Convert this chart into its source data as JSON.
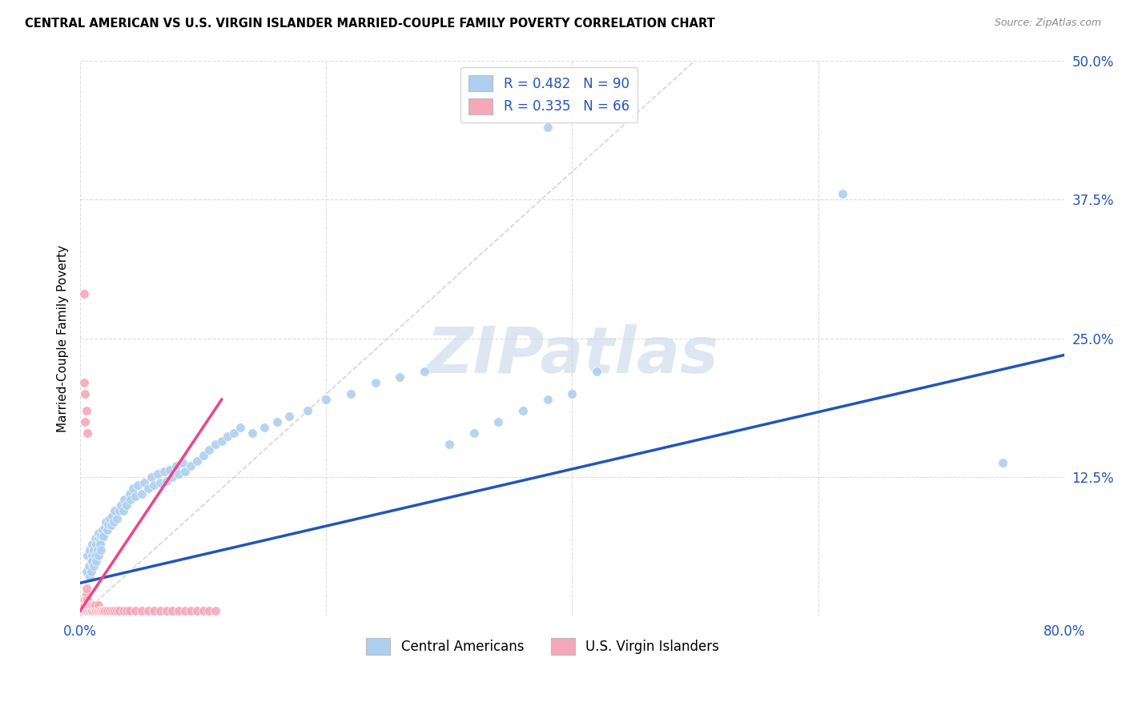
{
  "title": "CENTRAL AMERICAN VS U.S. VIRGIN ISLANDER MARRIED-COUPLE FAMILY POVERTY CORRELATION CHART",
  "source": "Source: ZipAtlas.com",
  "ylabel": "Married-Couple Family Poverty",
  "xlim": [
    0.0,
    0.8
  ],
  "ylim": [
    0.0,
    0.5
  ],
  "blue_R": 0.482,
  "blue_N": 90,
  "pink_R": 0.335,
  "pink_N": 66,
  "blue_color": "#aecff0",
  "blue_line_color": "#2255bb",
  "pink_color": "#f5a8b8",
  "pink_line_color": "#ee4488",
  "diagonal_color": "#cccccc",
  "grid_color": "#dddddd",
  "watermark_color": "#c8d8e8",
  "legend_color": "#2255bb",
  "blue_line_x0": 0.0,
  "blue_line_y0": 0.03,
  "blue_line_x1": 0.8,
  "blue_line_y1": 0.235,
  "pink_line_x0": 0.0,
  "pink_line_y0": 0.005,
  "pink_line_x1": 0.115,
  "pink_line_y1": 0.195,
  "blue_x": [
    0.005,
    0.006,
    0.007,
    0.008,
    0.009,
    0.01,
    0.01,
    0.011,
    0.012,
    0.013,
    0.015,
    0.015,
    0.016,
    0.017,
    0.018,
    0.019,
    0.02,
    0.021,
    0.022,
    0.023,
    0.024,
    0.025,
    0.026,
    0.027,
    0.028,
    0.03,
    0.032,
    0.033,
    0.035,
    0.036,
    0.038,
    0.04,
    0.041,
    0.043,
    0.045,
    0.047,
    0.05,
    0.052,
    0.055,
    0.058,
    0.06,
    0.063,
    0.065,
    0.068,
    0.07,
    0.073,
    0.075,
    0.078,
    0.08,
    0.083,
    0.085,
    0.09,
    0.095,
    0.1,
    0.105,
    0.11,
    0.115,
    0.12,
    0.125,
    0.13,
    0.14,
    0.15,
    0.16,
    0.17,
    0.185,
    0.2,
    0.22,
    0.24,
    0.26,
    0.28,
    0.3,
    0.32,
    0.34,
    0.36,
    0.38,
    0.4,
    0.42,
    0.38,
    0.62,
    0.75,
    0.008,
    0.009,
    0.01,
    0.011,
    0.012,
    0.013,
    0.014,
    0.015,
    0.016,
    0.017
  ],
  "blue_y": [
    0.04,
    0.055,
    0.045,
    0.06,
    0.05,
    0.065,
    0.055,
    0.06,
    0.07,
    0.065,
    0.07,
    0.075,
    0.068,
    0.073,
    0.078,
    0.072,
    0.08,
    0.085,
    0.078,
    0.083,
    0.088,
    0.082,
    0.09,
    0.085,
    0.095,
    0.088,
    0.095,
    0.1,
    0.095,
    0.105,
    0.1,
    0.11,
    0.105,
    0.115,
    0.108,
    0.118,
    0.11,
    0.12,
    0.115,
    0.125,
    0.118,
    0.128,
    0.12,
    0.13,
    0.122,
    0.132,
    0.125,
    0.135,
    0.128,
    0.138,
    0.13,
    0.135,
    0.14,
    0.145,
    0.15,
    0.155,
    0.158,
    0.162,
    0.165,
    0.17,
    0.165,
    0.17,
    0.175,
    0.18,
    0.185,
    0.195,
    0.2,
    0.21,
    0.215,
    0.22,
    0.155,
    0.165,
    0.175,
    0.185,
    0.195,
    0.2,
    0.22,
    0.44,
    0.38,
    0.138,
    0.035,
    0.04,
    0.05,
    0.045,
    0.055,
    0.05,
    0.06,
    0.055,
    0.065,
    0.06
  ],
  "pink_x": [
    0.002,
    0.002,
    0.003,
    0.003,
    0.003,
    0.004,
    0.004,
    0.004,
    0.005,
    0.005,
    0.005,
    0.005,
    0.005,
    0.006,
    0.006,
    0.006,
    0.007,
    0.007,
    0.008,
    0.008,
    0.009,
    0.009,
    0.01,
    0.01,
    0.011,
    0.011,
    0.012,
    0.012,
    0.013,
    0.014,
    0.015,
    0.015,
    0.016,
    0.017,
    0.018,
    0.019,
    0.02,
    0.022,
    0.024,
    0.026,
    0.028,
    0.03,
    0.032,
    0.035,
    0.038,
    0.04,
    0.045,
    0.05,
    0.055,
    0.06,
    0.065,
    0.07,
    0.075,
    0.08,
    0.085,
    0.09,
    0.095,
    0.1,
    0.105,
    0.11,
    0.003,
    0.003,
    0.004,
    0.004,
    0.005,
    0.006
  ],
  "pink_y": [
    0.005,
    0.01,
    0.005,
    0.01,
    0.015,
    0.005,
    0.01,
    0.015,
    0.005,
    0.01,
    0.015,
    0.02,
    0.025,
    0.005,
    0.01,
    0.015,
    0.005,
    0.01,
    0.005,
    0.01,
    0.005,
    0.01,
    0.005,
    0.01,
    0.005,
    0.01,
    0.005,
    0.01,
    0.005,
    0.005,
    0.005,
    0.01,
    0.005,
    0.005,
    0.005,
    0.005,
    0.005,
    0.005,
    0.005,
    0.005,
    0.005,
    0.005,
    0.005,
    0.005,
    0.005,
    0.005,
    0.005,
    0.005,
    0.005,
    0.005,
    0.005,
    0.005,
    0.005,
    0.005,
    0.005,
    0.005,
    0.005,
    0.005,
    0.005,
    0.005,
    0.29,
    0.21,
    0.2,
    0.175,
    0.185,
    0.165
  ]
}
